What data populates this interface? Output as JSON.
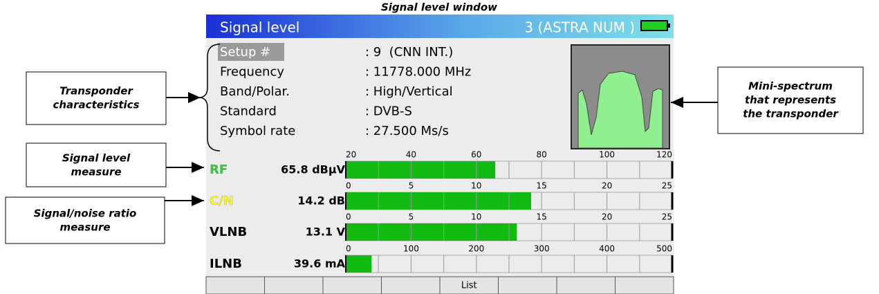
{
  "caption": "Signal level window",
  "screen": {
    "title": "Signal level",
    "channel": "3 (ASTRA NUM )",
    "info": [
      {
        "label": "Setup #",
        "value": ": 9  (CNN INT.)"
      },
      {
        "label": "Frequency",
        "value": ": 11778.000 MHz"
      },
      {
        "label": "Band/Polar.",
        "value": ": High/Vertical"
      },
      {
        "label": "Standard",
        "value": ": DVB-S"
      },
      {
        "label": "Symbol rate",
        "value": ": 27.500 Ms/s"
      }
    ],
    "meters": [
      {
        "label": "RF",
        "color": "#33cc33",
        "value": 65.8,
        "value_label": "65.8 dBµV",
        "lim": [
          20,
          120
        ],
        "ticks": [
          20,
          40,
          60,
          80,
          100,
          120
        ]
      },
      {
        "label": "C/N",
        "color": "#ffff00",
        "value": 14.2,
        "value_label": "14.2 dB",
        "lim": [
          0,
          25
        ],
        "ticks": [
          0,
          5,
          10,
          15,
          20,
          25
        ]
      },
      {
        "label": "VLNB",
        "color": "#000000",
        "value": 13.1,
        "value_label": "13.1 V",
        "lim": [
          0,
          25
        ],
        "ticks": [
          0,
          5,
          10,
          15,
          20,
          25
        ]
      },
      {
        "label": "ILNB",
        "color": "#000000",
        "value": 39.6,
        "value_label": "39.6 mA",
        "lim": [
          0,
          500
        ],
        "ticks": [
          0,
          100,
          200,
          300,
          400,
          500
        ]
      }
    ],
    "button": "List"
  },
  "annotations": {
    "transponder": [
      "Transponder",
      "characteristics"
    ],
    "signal_level": [
      "Signal level",
      "measure"
    ],
    "signal_noise": [
      "Signal/noise ratio",
      "measure"
    ],
    "mini_spectrum": [
      "Mini-spectrum",
      "that represents",
      "the transponder"
    ]
  }
}
